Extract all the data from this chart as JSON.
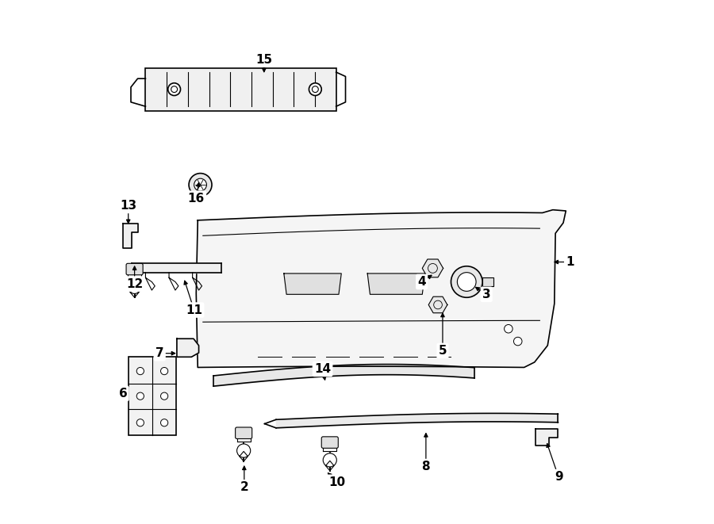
{
  "bg_color": "#ffffff",
  "line_color": "#000000",
  "text_color": "#000000",
  "label_positions": {
    "1": [
      0.908,
      0.5,
      0.872,
      0.5
    ],
    "2": [
      0.284,
      0.068,
      0.284,
      0.115
    ],
    "3": [
      0.748,
      0.438,
      0.722,
      0.455
    ],
    "4": [
      0.624,
      0.462,
      0.648,
      0.478
    ],
    "5": [
      0.664,
      0.33,
      0.664,
      0.408
    ],
    "6": [
      0.052,
      0.248,
      0.068,
      0.248
    ],
    "7": [
      0.122,
      0.325,
      0.158,
      0.325
    ],
    "8": [
      0.632,
      0.108,
      0.632,
      0.178
    ],
    "9": [
      0.886,
      0.088,
      0.862,
      0.158
    ],
    "10": [
      0.462,
      0.078,
      0.44,
      0.1
    ],
    "11": [
      0.188,
      0.408,
      0.168,
      0.47
    ],
    "12": [
      0.074,
      0.458,
      0.074,
      0.498
    ],
    "13": [
      0.062,
      0.608,
      0.062,
      0.568
    ],
    "14": [
      0.434,
      0.295,
      0.44,
      0.268
    ],
    "15": [
      0.322,
      0.888,
      0.322,
      0.858
    ],
    "16": [
      0.192,
      0.622,
      0.198,
      0.658
    ]
  }
}
